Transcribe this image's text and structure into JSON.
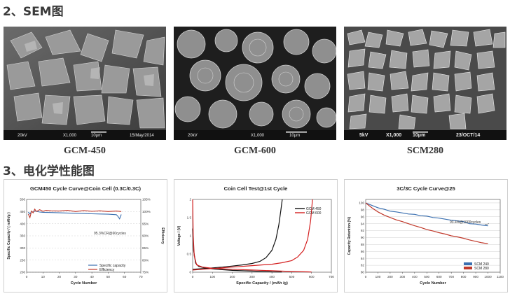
{
  "sections": {
    "sem_title": "2、SEM图",
    "echem_title": "3、电化学性能图"
  },
  "sem_images": [
    {
      "caption": "GCM-450",
      "overlay": [
        "20kV",
        "X1,000",
        "10μm",
        "15/May/2014"
      ]
    },
    {
      "caption": "GCM-600",
      "overlay": [
        "20kV",
        "X1,000",
        "10μm"
      ]
    },
    {
      "caption": "SCM280",
      "overlay": [
        "5kV",
        "X1,000",
        "10μm",
        "23/OCT/14"
      ]
    }
  ],
  "chart_data": [
    {
      "type": "line",
      "title": "GCM450 Cycle Curve@Coin Cell (0.3C/0.3C)",
      "xlabel": "Cycle Number",
      "ylabel": "Specific Capacity / ( mAh/g )",
      "y2label": "Efficiency",
      "xlim": [
        0,
        70
      ],
      "xticks": [
        0,
        10,
        20,
        30,
        40,
        50,
        60,
        70
      ],
      "ylim": [
        200,
        500
      ],
      "yticks": [
        200,
        250,
        300,
        350,
        400,
        450,
        500
      ],
      "y2lim": [
        75,
        105
      ],
      "y2ticks": [
        "75%",
        "80%",
        "85%",
        "90%",
        "95%",
        "100%",
        "105%"
      ],
      "annotation": "95.3%CR@60cycles",
      "legend_position": "bottom-right",
      "grid": true,
      "series": [
        {
          "name": "Specific capacity",
          "color": "#3a6fb0",
          "axis": "left",
          "x": [
            1,
            2,
            3,
            4,
            5,
            6,
            8,
            10,
            15,
            20,
            25,
            30,
            35,
            40,
            45,
            50,
            55,
            56,
            57,
            58
          ],
          "y": [
            448,
            440,
            450,
            447,
            452,
            451,
            448,
            447,
            446,
            445,
            444,
            443,
            442,
            441,
            440,
            439,
            437,
            430,
            420,
            438
          ]
        },
        {
          "name": "Efficiency",
          "color": "#c0392b",
          "axis": "right",
          "x": [
            1,
            2,
            3,
            4,
            5,
            6,
            8,
            10,
            12,
            15,
            20,
            25,
            30,
            35,
            40,
            45,
            50,
            55,
            58
          ],
          "y": [
            99.0,
            97.5,
            100.2,
            99.5,
            101.0,
            100.0,
            100.8,
            100.1,
            100.5,
            100.3,
            100.2,
            100.5,
            100.0,
            100.4,
            100.1,
            100.3,
            100.0,
            100.2,
            100.0
          ]
        }
      ]
    },
    {
      "type": "line",
      "title": "Coin  Cell Test@1st Cycle",
      "xlabel": "Specific Capacity / (mAh /g)",
      "ylabel": "Voltage / (V)",
      "xlim": [
        0,
        700
      ],
      "xticks": [
        0,
        100,
        200,
        300,
        400,
        500,
        600,
        700
      ],
      "ylim": [
        0,
        2
      ],
      "yticks": [
        0,
        0.5,
        1,
        1.5,
        2
      ],
      "legend_position": "top-right",
      "grid": false,
      "series": [
        {
          "name": "GCM 450",
          "color": "#111111",
          "discharge": {
            "x": [
              0,
              5,
              15,
              30,
              60,
              100,
              150,
              200,
              300,
              400,
              450
            ],
            "y": [
              1.2,
              0.6,
              0.25,
              0.16,
              0.12,
              0.09,
              0.07,
              0.05,
              0.03,
              0.01,
              0.005
            ]
          },
          "charge": {
            "x": [
              0,
              50,
              100,
              150,
              200,
              250,
              300,
              340,
              370,
              400,
              420,
              435,
              445,
              452
            ],
            "y": [
              0.08,
              0.1,
              0.12,
              0.14,
              0.17,
              0.2,
              0.24,
              0.3,
              0.4,
              0.6,
              0.9,
              1.3,
              1.7,
              2.0
            ]
          }
        },
        {
          "name": "GCM 600",
          "color": "#d42020",
          "discharge": {
            "x": [
              0,
              3,
              8,
              20,
              50,
              100,
              200,
              300,
              400,
              500,
              580,
              600
            ],
            "y": [
              2.0,
              1.0,
              0.45,
              0.2,
              0.14,
              0.11,
              0.08,
              0.06,
              0.04,
              0.02,
              0.01,
              0.005
            ]
          },
          "charge": {
            "x": [
              0,
              50,
              100,
              200,
              300,
              400,
              450,
              500,
              530,
              560,
              580,
              595,
              605
            ],
            "y": [
              0.06,
              0.08,
              0.1,
              0.14,
              0.18,
              0.22,
              0.26,
              0.32,
              0.42,
              0.6,
              0.9,
              1.4,
              2.0
            ]
          }
        }
      ]
    },
    {
      "type": "line",
      "title": "3C/3C Cycle Curve@25",
      "xlabel": "Cycle Number",
      "ylabel": "Capacity Retention (%)",
      "xlim": [
        0,
        1100
      ],
      "xticks": [
        0,
        100,
        200,
        300,
        400,
        500,
        600,
        700,
        800,
        900,
        1000,
        1100
      ],
      "ylim": [
        80,
        101
      ],
      "yticks": [
        80,
        82,
        84,
        86,
        88,
        90,
        92,
        94,
        96,
        98,
        100
      ],
      "annotation": "93.4%@1000cycles",
      "legend_position": "bottom-right",
      "grid": true,
      "series": [
        {
          "name": "SCM 240",
          "color": "#3a6fb0",
          "x": [
            0,
            50,
            100,
            150,
            200,
            250,
            300,
            350,
            400,
            450,
            500,
            550,
            600,
            650,
            700,
            750,
            800,
            850,
            900,
            950,
            1000
          ],
          "y": [
            100,
            99.3,
            98.6,
            98.2,
            97.6,
            97.4,
            97.1,
            96.8,
            96.7,
            96.3,
            96.2,
            95.8,
            95.6,
            95.3,
            95.0,
            94.8,
            94.6,
            94.0,
            93.9,
            93.6,
            93.4
          ]
        },
        {
          "name": "SCM 280",
          "color": "#c0392b",
          "x": [
            0,
            50,
            100,
            150,
            200,
            250,
            300,
            350,
            400,
            450,
            500,
            550,
            600,
            650,
            700,
            750,
            800,
            850,
            900,
            950,
            1000
          ],
          "y": [
            100,
            98.6,
            97.4,
            96.5,
            95.8,
            95.1,
            94.6,
            94.0,
            93.4,
            92.9,
            92.3,
            91.9,
            91.4,
            91.0,
            90.5,
            90.2,
            89.8,
            89.3,
            88.9,
            88.5,
            88.2
          ]
        }
      ]
    }
  ]
}
